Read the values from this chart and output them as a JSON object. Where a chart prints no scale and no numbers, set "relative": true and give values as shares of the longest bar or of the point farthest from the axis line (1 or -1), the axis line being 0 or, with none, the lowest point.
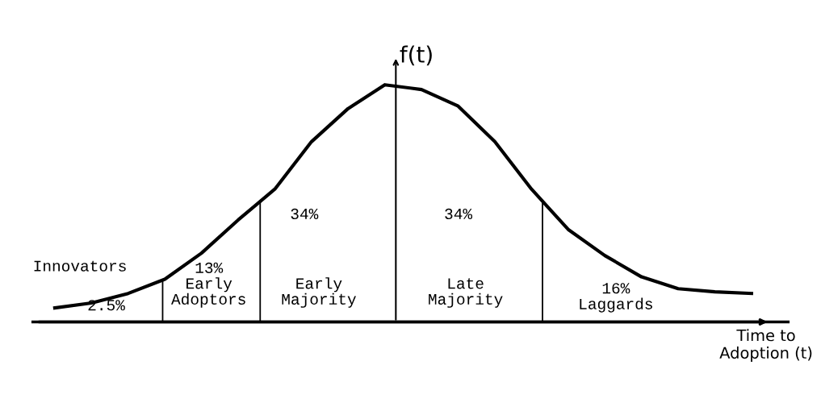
{
  "chart_data": {
    "type": "line",
    "relative": true,
    "xlabel": "Time to\nAdoption (t)",
    "ylabel": "f(t)",
    "categories": [
      null,
      null,
      null,
      null,
      null,
      null,
      null,
      null,
      null,
      null,
      null,
      null,
      null,
      null,
      null,
      null,
      null,
      null,
      null,
      null
    ],
    "series": [
      {
        "color": "#000000",
        "values": [
          0.059,
          0.08,
          0.12,
          0.18,
          0.29,
          0.43,
          0.56,
          0.76,
          0.9,
          1.0,
          0.98,
          0.91,
          0.76,
          0.56,
          0.39,
          0.28,
          0.19,
          0.14,
          0.127,
          0.12
        ]
      }
    ],
    "annotations": [
      "Innovators",
      "2.5%",
      "13%\nEarly\nAdoptors",
      "34%",
      "Early\nMajority",
      "34%",
      "Late\nMajority",
      "16%\nLaggards"
    ],
    "marker": "none",
    "line_style": "solid"
  }
}
